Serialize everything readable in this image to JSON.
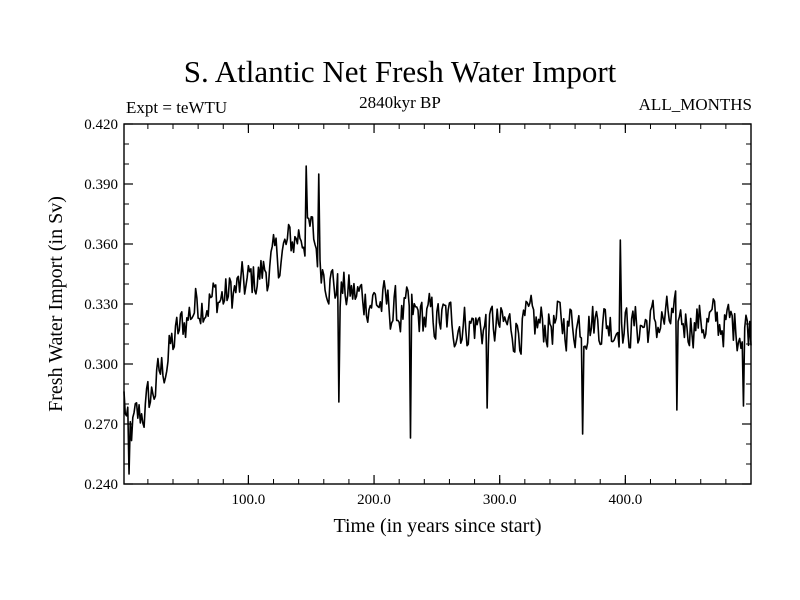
{
  "chart_data": {
    "type": "line",
    "title": "S. Atlantic Net Fresh Water Import",
    "subtitle_left": "Expt = teWTU",
    "subtitle_center": "2840kyr BP",
    "subtitle_right": "ALL_MONTHS",
    "xlabel": "Time (in years since start)",
    "ylabel": "Fresh Water Import (in Sv)",
    "xlim": [
      1,
      500
    ],
    "ylim": [
      0.24,
      0.42
    ],
    "xticks": [
      100,
      200,
      300,
      400
    ],
    "xtick_labels": [
      "100.0",
      "200.0",
      "300.0",
      "400.0"
    ],
    "yticks": [
      0.24,
      0.27,
      0.3,
      0.33,
      0.36,
      0.39,
      0.42
    ],
    "ytick_labels": [
      "0.240",
      "0.270",
      "0.300",
      "0.330",
      "0.360",
      "0.390",
      "0.420"
    ],
    "series": [
      {
        "name": "Fresh Water Import",
        "anchors_x": [
          1,
          5,
          10,
          20,
          30,
          40,
          50,
          60,
          80,
          100,
          120,
          140,
          150,
          160,
          170,
          180,
          200,
          220,
          250,
          300,
          350,
          380,
          400,
          440,
          480,
          500
        ],
        "anchors_y": [
          0.283,
          0.262,
          0.27,
          0.28,
          0.295,
          0.31,
          0.322,
          0.332,
          0.333,
          0.34,
          0.35,
          0.365,
          0.365,
          0.348,
          0.338,
          0.335,
          0.332,
          0.325,
          0.322,
          0.318,
          0.32,
          0.322,
          0.318,
          0.322,
          0.32,
          0.318
        ],
        "noise_amplitude": 0.014,
        "spikes": [
          {
            "x": 5,
            "y": 0.245
          },
          {
            "x": 146,
            "y": 0.399
          },
          {
            "x": 156,
            "y": 0.395
          },
          {
            "x": 172,
            "y": 0.281
          },
          {
            "x": 229,
            "y": 0.263
          },
          {
            "x": 290,
            "y": 0.278
          },
          {
            "x": 366,
            "y": 0.265
          },
          {
            "x": 441,
            "y": 0.277
          },
          {
            "x": 396,
            "y": 0.362
          },
          {
            "x": 494,
            "y": 0.279
          }
        ]
      }
    ]
  }
}
